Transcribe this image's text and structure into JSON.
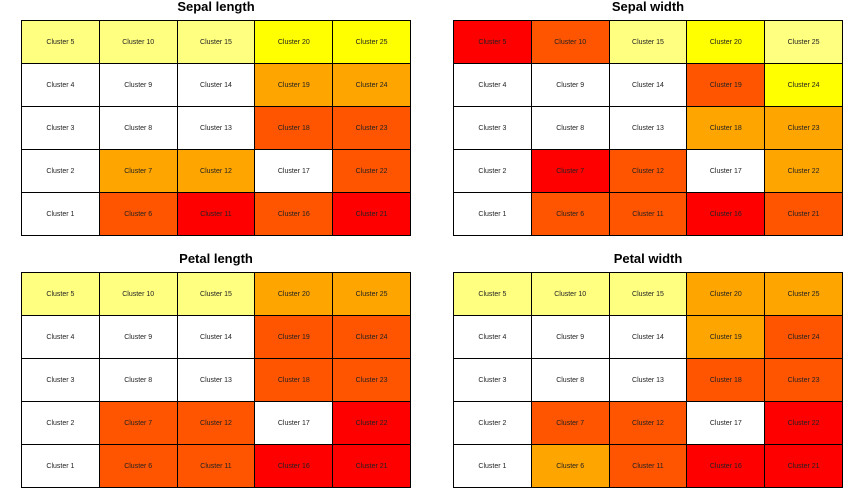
{
  "chart_data": [
    {
      "type": "heatmap",
      "title": "Sepal length",
      "rows": [
        [
          "Cluster 5",
          "Cluster 10",
          "Cluster 15",
          "Cluster 20",
          "Cluster 25"
        ],
        [
          "Cluster 4",
          "Cluster 9",
          "Cluster 14",
          "Cluster 19",
          "Cluster 24"
        ],
        [
          "Cluster 3",
          "Cluster 8",
          "Cluster 13",
          "Cluster 18",
          "Cluster 23"
        ],
        [
          "Cluster 2",
          "Cluster 7",
          "Cluster 12",
          "Cluster 17",
          "Cluster 22"
        ],
        [
          "Cluster 1",
          "Cluster 6",
          "Cluster 11",
          "Cluster 16",
          "Cluster 21"
        ]
      ],
      "colors": [
        [
          "#FFFF80",
          "#FFFF80",
          "#FFFF80",
          "#FFFF00",
          "#FFFF00"
        ],
        [
          "#FFFFFF",
          "#FFFFFF",
          "#FFFFFF",
          "#FFA500",
          "#FFA500"
        ],
        [
          "#FFFFFF",
          "#FFFFFF",
          "#FFFFFF",
          "#FF5500",
          "#FF5500"
        ],
        [
          "#FFFFFF",
          "#FFA500",
          "#FFA500",
          "#FFFFFF",
          "#FF5500"
        ],
        [
          "#FFFFFF",
          "#FF5500",
          "#FF0000",
          "#FF5500",
          "#FF0000"
        ]
      ]
    },
    {
      "type": "heatmap",
      "title": "Sepal width",
      "rows": [
        [
          "Cluster 5",
          "Cluster 10",
          "Cluster 15",
          "Cluster 20",
          "Cluster 25"
        ],
        [
          "Cluster 4",
          "Cluster 9",
          "Cluster 14",
          "Cluster 19",
          "Cluster 24"
        ],
        [
          "Cluster 3",
          "Cluster 8",
          "Cluster 13",
          "Cluster 18",
          "Cluster 23"
        ],
        [
          "Cluster 2",
          "Cluster 7",
          "Cluster 12",
          "Cluster 17",
          "Cluster 22"
        ],
        [
          "Cluster 1",
          "Cluster 6",
          "Cluster 11",
          "Cluster 16",
          "Cluster 21"
        ]
      ],
      "colors": [
        [
          "#FF0000",
          "#FF5500",
          "#FFFF80",
          "#FFFF00",
          "#FFFF80"
        ],
        [
          "#FFFFFF",
          "#FFFFFF",
          "#FFFFFF",
          "#FF5500",
          "#FFFF00"
        ],
        [
          "#FFFFFF",
          "#FFFFFF",
          "#FFFFFF",
          "#FFA500",
          "#FFA500"
        ],
        [
          "#FFFFFF",
          "#FF0000",
          "#FF5500",
          "#FFFFFF",
          "#FFA500"
        ],
        [
          "#FFFFFF",
          "#FF5500",
          "#FF5500",
          "#FF0000",
          "#FF5500"
        ]
      ]
    },
    {
      "type": "heatmap",
      "title": "Petal length",
      "rows": [
        [
          "Cluster 5",
          "Cluster 10",
          "Cluster 15",
          "Cluster 20",
          "Cluster 25"
        ],
        [
          "Cluster 4",
          "Cluster 9",
          "Cluster 14",
          "Cluster 19",
          "Cluster 24"
        ],
        [
          "Cluster 3",
          "Cluster 8",
          "Cluster 13",
          "Cluster 18",
          "Cluster 23"
        ],
        [
          "Cluster 2",
          "Cluster 7",
          "Cluster 12",
          "Cluster 17",
          "Cluster 22"
        ],
        [
          "Cluster 1",
          "Cluster 6",
          "Cluster 11",
          "Cluster 16",
          "Cluster 21"
        ]
      ],
      "colors": [
        [
          "#FFFF80",
          "#FFFF80",
          "#FFFF80",
          "#FFA500",
          "#FFA500"
        ],
        [
          "#FFFFFF",
          "#FFFFFF",
          "#FFFFFF",
          "#FF5500",
          "#FF5500"
        ],
        [
          "#FFFFFF",
          "#FFFFFF",
          "#FFFFFF",
          "#FF5500",
          "#FF5500"
        ],
        [
          "#FFFFFF",
          "#FF5500",
          "#FF5500",
          "#FFFFFF",
          "#FF0000"
        ],
        [
          "#FFFFFF",
          "#FF5500",
          "#FF5500",
          "#FF0000",
          "#FF0000"
        ]
      ]
    },
    {
      "type": "heatmap",
      "title": "Petal width",
      "rows": [
        [
          "Cluster 5",
          "Cluster 10",
          "Cluster 15",
          "Cluster 20",
          "Cluster 25"
        ],
        [
          "Cluster 4",
          "Cluster 9",
          "Cluster 14",
          "Cluster 19",
          "Cluster 24"
        ],
        [
          "Cluster 3",
          "Cluster 8",
          "Cluster 13",
          "Cluster 18",
          "Cluster 23"
        ],
        [
          "Cluster 2",
          "Cluster 7",
          "Cluster 12",
          "Cluster 17",
          "Cluster 22"
        ],
        [
          "Cluster 1",
          "Cluster 6",
          "Cluster 11",
          "Cluster 16",
          "Cluster 21"
        ]
      ],
      "colors": [
        [
          "#FFFF80",
          "#FFFF80",
          "#FFFF80",
          "#FFA500",
          "#FFA500"
        ],
        [
          "#FFFFFF",
          "#FFFFFF",
          "#FFFFFF",
          "#FFA500",
          "#FF5500"
        ],
        [
          "#FFFFFF",
          "#FFFFFF",
          "#FFFFFF",
          "#FF5500",
          "#FF5500"
        ],
        [
          "#FFFFFF",
          "#FF5500",
          "#FF5500",
          "#FFFFFF",
          "#FF0000"
        ],
        [
          "#FFFFFF",
          "#FFA500",
          "#FF5500",
          "#FF0000",
          "#FF0000"
        ]
      ]
    }
  ]
}
